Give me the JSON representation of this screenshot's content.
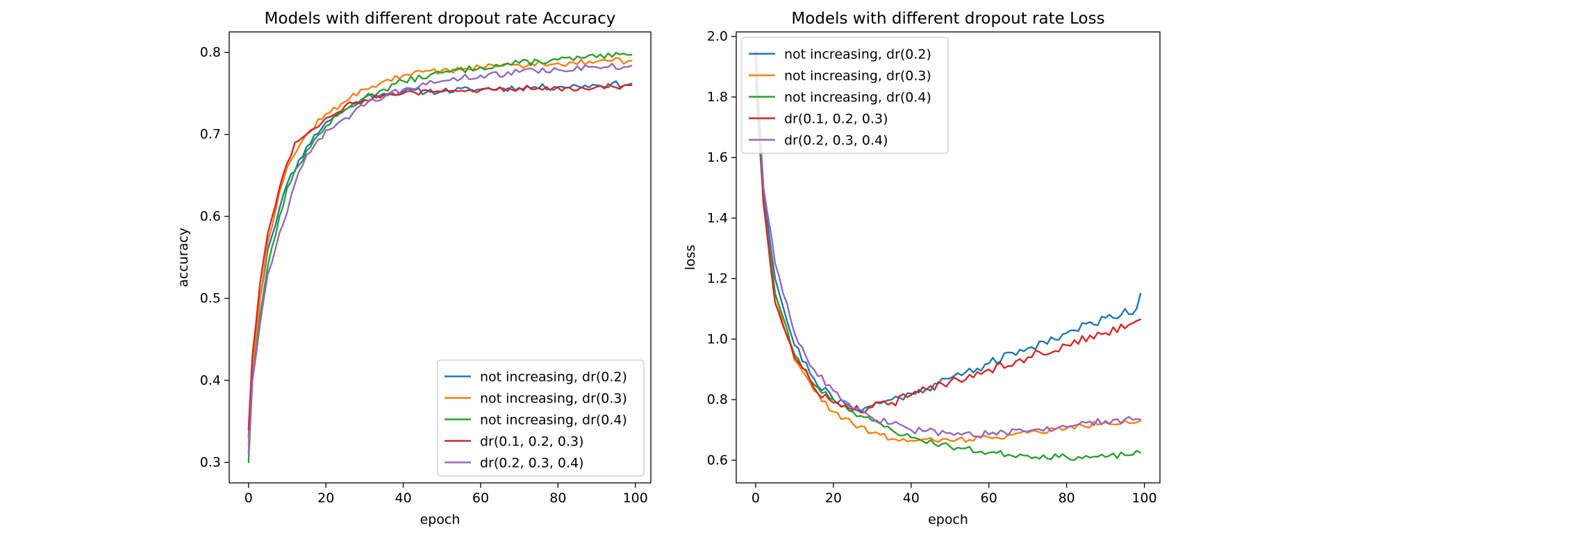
{
  "figure": {
    "background": "#ffffff"
  },
  "colors": {
    "not_increasing_dr02": "#1f77b4",
    "not_increasing_dr03": "#ff7f0e",
    "not_increasing_dr04": "#2ca02c",
    "dr_01_02_03": "#d62728",
    "dr_02_03_04": "#9467bd"
  },
  "chart_data": [
    {
      "type": "line",
      "title": "Models with different dropout rate Accuracy",
      "xlabel": "epoch",
      "ylabel": "accuracy",
      "xlim": [
        -5,
        104
      ],
      "ylim": [
        0.275,
        0.825
      ],
      "xticks": [
        0,
        20,
        40,
        60,
        80,
        100
      ],
      "yticks": [
        0.3,
        0.4,
        0.5,
        0.6,
        0.7,
        0.8
      ],
      "ytick_labels": [
        "0.3",
        "0.4",
        "0.5",
        "0.6",
        "0.7",
        "0.8"
      ],
      "grid": false,
      "legend_position": "lower-right",
      "series": [
        {
          "name": "not increasing, dr(0.2)",
          "color": "#1f77b4",
          "anchors": [
            [
              0,
              0.33
            ],
            [
              1,
              0.42
            ],
            [
              3,
              0.5
            ],
            [
              5,
              0.56
            ],
            [
              8,
              0.61
            ],
            [
              10,
              0.64
            ],
            [
              15,
              0.685
            ],
            [
              20,
              0.715
            ],
            [
              25,
              0.73
            ],
            [
              30,
              0.745
            ],
            [
              35,
              0.75
            ],
            [
              40,
              0.752
            ],
            [
              50,
              0.753
            ],
            [
              60,
              0.755
            ],
            [
              70,
              0.757
            ],
            [
              80,
              0.758
            ],
            [
              90,
              0.76
            ],
            [
              99,
              0.762
            ]
          ],
          "noise": 0.004,
          "seed": 11
        },
        {
          "name": "not increasing, dr(0.3)",
          "color": "#ff7f0e",
          "anchors": [
            [
              0,
              0.32
            ],
            [
              1,
              0.41
            ],
            [
              3,
              0.5
            ],
            [
              5,
              0.57
            ],
            [
              8,
              0.63
            ],
            [
              10,
              0.66
            ],
            [
              15,
              0.7
            ],
            [
              20,
              0.725
            ],
            [
              25,
              0.74
            ],
            [
              30,
              0.755
            ],
            [
              35,
              0.765
            ],
            [
              40,
              0.772
            ],
            [
              50,
              0.778
            ],
            [
              60,
              0.782
            ],
            [
              70,
              0.785
            ],
            [
              80,
              0.787
            ],
            [
              90,
              0.789
            ],
            [
              99,
              0.79
            ]
          ],
          "noise": 0.004,
          "seed": 12
        },
        {
          "name": "not increasing, dr(0.4)",
          "color": "#2ca02c",
          "anchors": [
            [
              0,
              0.3
            ],
            [
              1,
              0.4
            ],
            [
              3,
              0.48
            ],
            [
              5,
              0.54
            ],
            [
              8,
              0.6
            ],
            [
              10,
              0.635
            ],
            [
              15,
              0.68
            ],
            [
              20,
              0.71
            ],
            [
              25,
              0.73
            ],
            [
              30,
              0.745
            ],
            [
              35,
              0.755
            ],
            [
              40,
              0.765
            ],
            [
              50,
              0.775
            ],
            [
              60,
              0.782
            ],
            [
              70,
              0.787
            ],
            [
              80,
              0.791
            ],
            [
              90,
              0.794
            ],
            [
              99,
              0.797
            ]
          ],
          "noise": 0.004,
          "seed": 13
        },
        {
          "name": "dr(0.1, 0.2, 0.3)",
          "color": "#d62728",
          "anchors": [
            [
              0,
              0.34
            ],
            [
              1,
              0.43
            ],
            [
              3,
              0.52
            ],
            [
              5,
              0.58
            ],
            [
              8,
              0.635
            ],
            [
              10,
              0.665
            ],
            [
              12,
              0.69
            ],
            [
              15,
              0.7
            ],
            [
              20,
              0.72
            ],
            [
              25,
              0.735
            ],
            [
              30,
              0.742
            ],
            [
              35,
              0.748
            ],
            [
              40,
              0.75
            ],
            [
              50,
              0.752
            ],
            [
              60,
              0.754
            ],
            [
              70,
              0.756
            ],
            [
              80,
              0.757
            ],
            [
              90,
              0.758
            ],
            [
              99,
              0.76
            ]
          ],
          "noise": 0.004,
          "seed": 14
        },
        {
          "name": "dr(0.2, 0.3, 0.4)",
          "color": "#9467bd",
          "anchors": [
            [
              0,
              0.31
            ],
            [
              1,
              0.4
            ],
            [
              3,
              0.47
            ],
            [
              5,
              0.53
            ],
            [
              8,
              0.58
            ],
            [
              10,
              0.605
            ],
            [
              12,
              0.64
            ],
            [
              15,
              0.675
            ],
            [
              20,
              0.705
            ],
            [
              25,
              0.72
            ],
            [
              30,
              0.735
            ],
            [
              35,
              0.745
            ],
            [
              40,
              0.755
            ],
            [
              50,
              0.765
            ],
            [
              60,
              0.772
            ],
            [
              70,
              0.776
            ],
            [
              80,
              0.779
            ],
            [
              90,
              0.782
            ],
            [
              99,
              0.784
            ]
          ],
          "noise": 0.004,
          "seed": 15
        }
      ]
    },
    {
      "type": "line",
      "title": "Models with different dropout rate Loss",
      "xlabel": "epoch",
      "ylabel": "loss",
      "xlim": [
        -5,
        104
      ],
      "ylim": [
        0.525,
        2.015
      ],
      "xticks": [
        0,
        20,
        40,
        60,
        80,
        100
      ],
      "yticks": [
        0.6,
        0.8,
        1.0,
        1.2,
        1.4,
        1.6,
        1.8,
        2.0
      ],
      "ytick_labels": [
        "0.6",
        "0.8",
        "1.0",
        "1.2",
        "1.4",
        "1.6",
        "1.8",
        "2.0"
      ],
      "grid": false,
      "legend_position": "upper-left",
      "series": [
        {
          "name": "not increasing, dr(0.2)",
          "color": "#1f77b4",
          "anchors": [
            [
              0,
              1.95
            ],
            [
              2,
              1.5
            ],
            [
              5,
              1.2
            ],
            [
              10,
              0.98
            ],
            [
              15,
              0.87
            ],
            [
              20,
              0.8
            ],
            [
              25,
              0.77
            ],
            [
              30,
              0.78
            ],
            [
              35,
              0.8
            ],
            [
              40,
              0.82
            ],
            [
              50,
              0.87
            ],
            [
              60,
              0.92
            ],
            [
              70,
              0.97
            ],
            [
              80,
              1.02
            ],
            [
              90,
              1.07
            ],
            [
              98,
              1.1
            ],
            [
              99,
              1.15
            ]
          ],
          "noise": 0.015,
          "seed": 21
        },
        {
          "name": "not increasing, dr(0.3)",
          "color": "#ff7f0e",
          "anchors": [
            [
              0,
              1.9
            ],
            [
              2,
              1.45
            ],
            [
              5,
              1.15
            ],
            [
              10,
              0.93
            ],
            [
              15,
              0.83
            ],
            [
              20,
              0.76
            ],
            [
              25,
              0.72
            ],
            [
              30,
              0.69
            ],
            [
              35,
              0.67
            ],
            [
              40,
              0.665
            ],
            [
              50,
              0.665
            ],
            [
              60,
              0.675
            ],
            [
              70,
              0.69
            ],
            [
              80,
              0.705
            ],
            [
              90,
              0.725
            ],
            [
              99,
              0.73
            ]
          ],
          "noise": 0.01,
          "seed": 22
        },
        {
          "name": "not increasing, dr(0.4)",
          "color": "#2ca02c",
          "anchors": [
            [
              0,
              1.85
            ],
            [
              2,
              1.45
            ],
            [
              5,
              1.15
            ],
            [
              10,
              0.95
            ],
            [
              15,
              0.85
            ],
            [
              20,
              0.8
            ],
            [
              25,
              0.76
            ],
            [
              30,
              0.73
            ],
            [
              35,
              0.7
            ],
            [
              40,
              0.675
            ],
            [
              50,
              0.645
            ],
            [
              60,
              0.625
            ],
            [
              70,
              0.615
            ],
            [
              80,
              0.61
            ],
            [
              90,
              0.61
            ],
            [
              99,
              0.625
            ]
          ],
          "noise": 0.01,
          "seed": 23
        },
        {
          "name": "dr(0.1, 0.2, 0.3)",
          "color": "#d62728",
          "anchors": [
            [
              0,
              1.95
            ],
            [
              2,
              1.45
            ],
            [
              5,
              1.12
            ],
            [
              10,
              0.94
            ],
            [
              15,
              0.84
            ],
            [
              20,
              0.79
            ],
            [
              25,
              0.765
            ],
            [
              30,
              0.775
            ],
            [
              35,
              0.79
            ],
            [
              40,
              0.815
            ],
            [
              50,
              0.86
            ],
            [
              60,
              0.9
            ],
            [
              70,
              0.94
            ],
            [
              80,
              0.98
            ],
            [
              90,
              1.02
            ],
            [
              98,
              1.06
            ],
            [
              99,
              1.065
            ]
          ],
          "noise": 0.015,
          "seed": 24
        },
        {
          "name": "dr(0.2, 0.3, 0.4)",
          "color": "#9467bd",
          "anchors": [
            [
              0,
              1.93
            ],
            [
              2,
              1.5
            ],
            [
              5,
              1.25
            ],
            [
              8,
              1.12
            ],
            [
              10,
              1.02
            ],
            [
              15,
              0.9
            ],
            [
              20,
              0.83
            ],
            [
              25,
              0.77
            ],
            [
              30,
              0.74
            ],
            [
              35,
              0.72
            ],
            [
              40,
              0.7
            ],
            [
              50,
              0.69
            ],
            [
              60,
              0.685
            ],
            [
              70,
              0.695
            ],
            [
              80,
              0.71
            ],
            [
              90,
              0.73
            ],
            [
              99,
              0.735
            ]
          ],
          "noise": 0.012,
          "seed": 25
        }
      ]
    }
  ]
}
